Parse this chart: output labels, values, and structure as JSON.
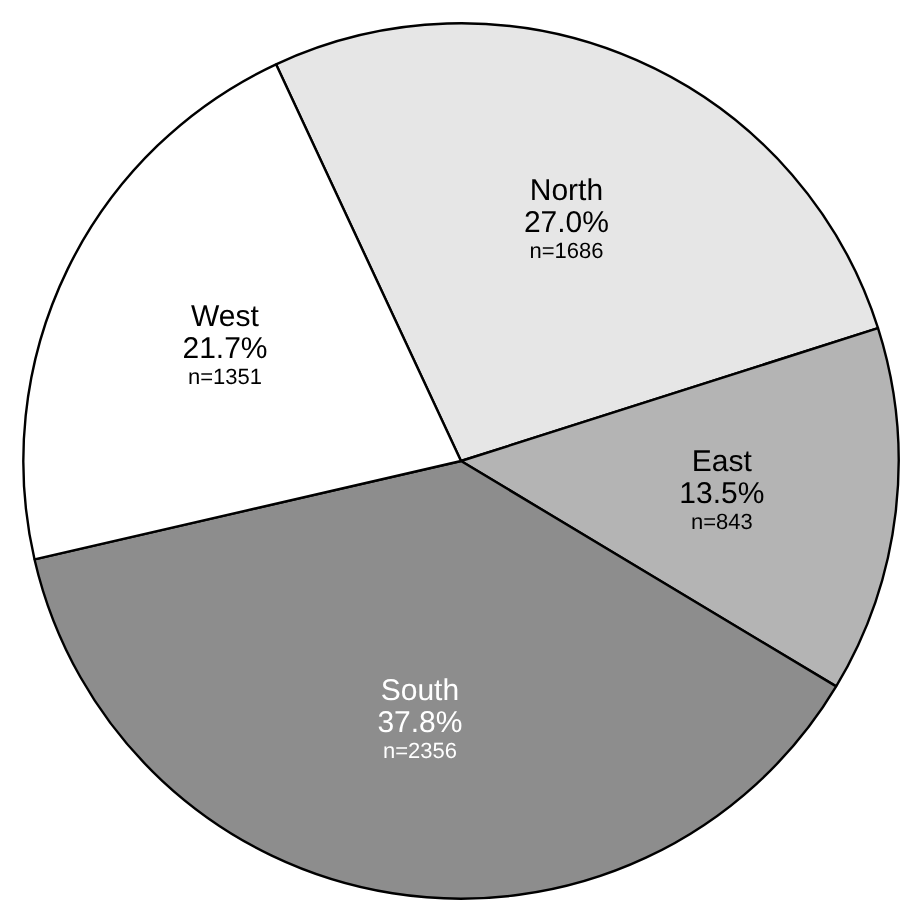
{
  "chart_data": {
    "type": "pie",
    "categories": [
      "North",
      "East",
      "South",
      "West"
    ],
    "values": [
      1686,
      843,
      2356,
      1351
    ],
    "colors": [
      "#e6e6e6",
      "#b4b4b4",
      "#8d8d8d",
      "#ffffff"
    ],
    "value_labels": [
      "27.0%\nn=1686",
      "13.5%\nn=843",
      "37.8%\nn=2356",
      "21.7%\nn=1351"
    ]
  }
}
